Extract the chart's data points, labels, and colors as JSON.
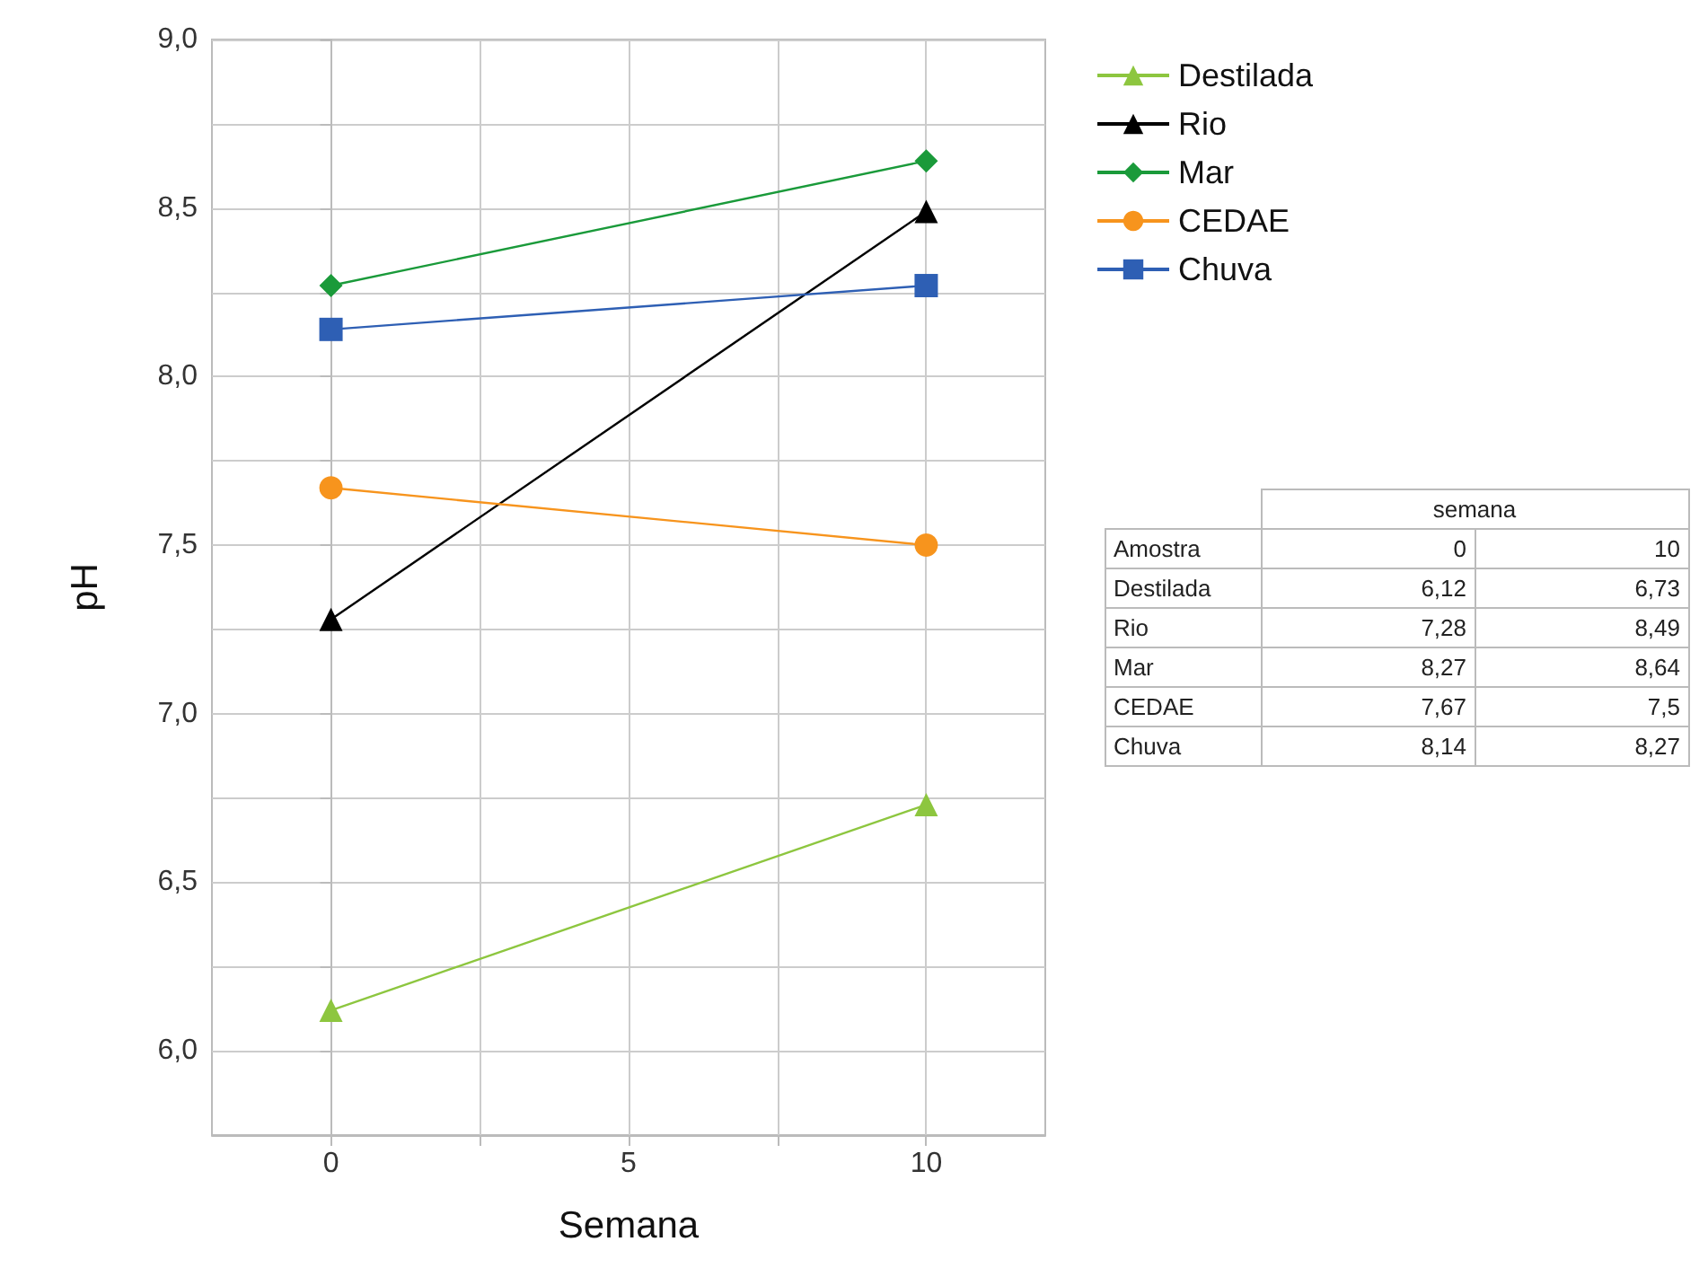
{
  "chart_data": [
    {
      "type": "line",
      "xlabel": "Semana",
      "ylabel": "pH",
      "x": [
        0,
        10
      ],
      "series": [
        {
          "name": "Destilada",
          "color": "#8dc63f",
          "marker": "triangle",
          "values": [
            6.12,
            6.73
          ]
        },
        {
          "name": "Rio",
          "color": "#000000",
          "marker": "triangle",
          "values": [
            7.28,
            8.49
          ]
        },
        {
          "name": "Mar",
          "color": "#1a9a3a",
          "marker": "diamond",
          "values": [
            8.27,
            8.64
          ]
        },
        {
          "name": "CEDAE",
          "color": "#f7941d",
          "marker": "circle",
          "values": [
            7.67,
            7.5
          ]
        },
        {
          "name": "Chuva",
          "color": "#2e5fb4",
          "marker": "square",
          "values": [
            8.14,
            8.27
          ]
        }
      ],
      "xlim": [
        -2,
        12
      ],
      "xticks": [
        0,
        {
          "value": 2.5,
          "label": null
        },
        5,
        {
          "value": 7.5,
          "label": null
        },
        10
      ],
      "ylim": [
        5.75,
        9.0
      ],
      "yticks": [
        {
          "value": 6,
          "label": "6,0"
        },
        {
          "value": 6.25,
          "label": null
        },
        {
          "value": 6.5,
          "label": "6,5"
        },
        {
          "value": 6.75,
          "label": null
        },
        {
          "value": 7,
          "label": "7,0"
        },
        {
          "value": 7.25,
          "label": null
        },
        {
          "value": 7.5,
          "label": "7,5"
        },
        {
          "value": 7.75,
          "label": null
        },
        {
          "value": 8,
          "label": "8,0"
        },
        {
          "value": 8.25,
          "label": null
        },
        {
          "value": 8.5,
          "label": "8,5"
        },
        {
          "value": 8.75,
          "label": null
        },
        {
          "value": 9,
          "label": "9,0"
        }
      ],
      "grid": true,
      "legend": "top right"
    },
    {
      "type": "other",
      "annotations": [
        "semana",
        "Amostra",
        "0",
        "10",
        "Destilada",
        "6,12",
        "6,73",
        "Rio",
        "7,28",
        "8,49",
        "Mar",
        "8,27",
        "8,64",
        "CEDAE",
        "7,67",
        "7,5",
        "Chuva",
        "8,14",
        "8,27"
      ]
    }
  ]
}
